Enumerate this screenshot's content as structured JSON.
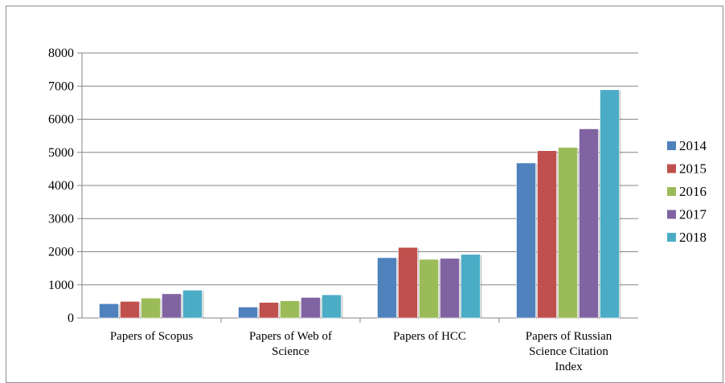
{
  "chart_data": {
    "type": "bar",
    "title": "",
    "xlabel": "",
    "ylabel": "",
    "ylim": [
      0,
      8000
    ],
    "yticks": [
      "0",
      "1000",
      "2000",
      "3000",
      "4000",
      "5000",
      "6000",
      "7000",
      "8000"
    ],
    "categories": [
      [
        "Papers of Scopus"
      ],
      [
        "Papers of Web of",
        "Science"
      ],
      [
        "Papers of HCC"
      ],
      [
        "Papers of Russian",
        "Science Citation",
        "Index"
      ]
    ],
    "series": [
      {
        "name": "2014",
        "color": "#4f81bd",
        "values": [
          430,
          330,
          1820,
          4680
        ]
      },
      {
        "name": "2015",
        "color": "#c0504d",
        "values": [
          500,
          470,
          2130,
          5050
        ]
      },
      {
        "name": "2016",
        "color": "#9bbb59",
        "values": [
          600,
          520,
          1770,
          5150
        ]
      },
      {
        "name": "2017",
        "color": "#8064a2",
        "values": [
          730,
          620,
          1800,
          5710
        ]
      },
      {
        "name": "2018",
        "color": "#4bacc6",
        "values": [
          840,
          700,
          1920,
          6890
        ]
      }
    ],
    "grid": true,
    "legend": "right"
  }
}
